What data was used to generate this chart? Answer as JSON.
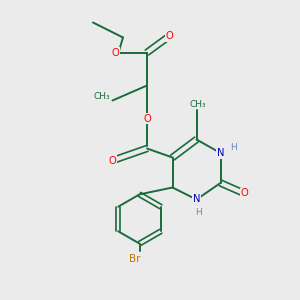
{
  "background_color": "#ebebeb",
  "bond_color": "#1a6b3c",
  "oxygen_color": "#ff0000",
  "nitrogen_color": "#0000bb",
  "bromine_color": "#bb7700",
  "hydrogen_color": "#6688bb",
  "figsize": [
    3.0,
    3.0
  ],
  "dpi": 100,
  "xlim": [
    0,
    10
  ],
  "ylim": [
    0,
    10
  ]
}
